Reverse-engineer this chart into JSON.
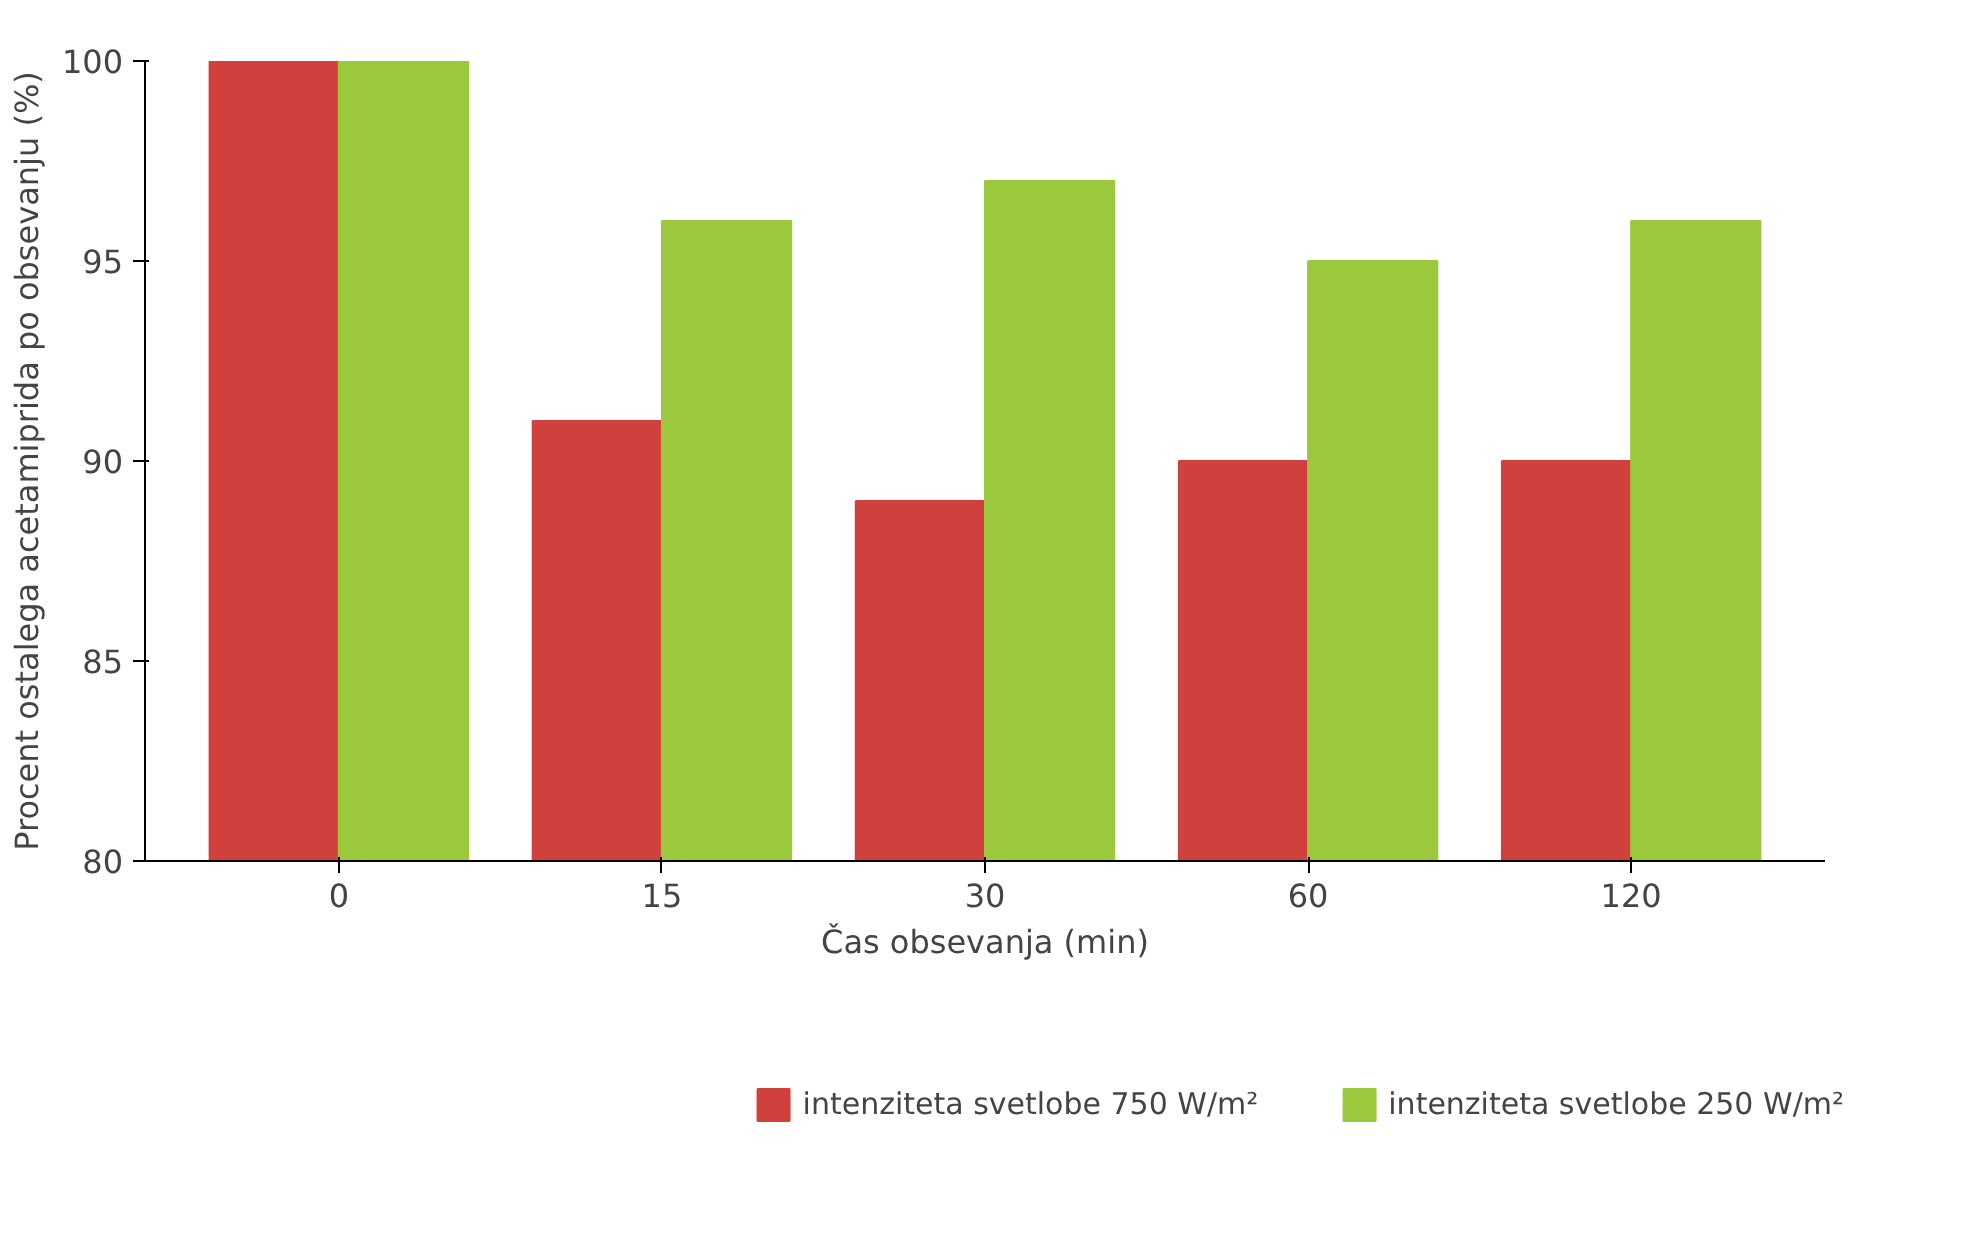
{
  "chart_data": {
    "type": "bar",
    "xlabel": "Čas obsevanja (min)",
    "ylabel": "Procent ostalega acetamiprida po obsevanju (%)",
    "categories": [
      "0",
      "15",
      "30",
      "60",
      "120"
    ],
    "series": [
      {
        "name": "intenziteta svetlobe 750 W/m²",
        "color": "#d0403c",
        "values": [
          100,
          91,
          89,
          90,
          90
        ]
      },
      {
        "name": "intenziteta svetlobe 250 W/m²",
        "color": "#9bc83c",
        "values": [
          100,
          96,
          97,
          95,
          96
        ]
      }
    ],
    "ylim": [
      80,
      100
    ],
    "yticks": [
      80,
      85,
      90,
      95,
      100
    ],
    "grid": false,
    "legend": "bottom"
  }
}
